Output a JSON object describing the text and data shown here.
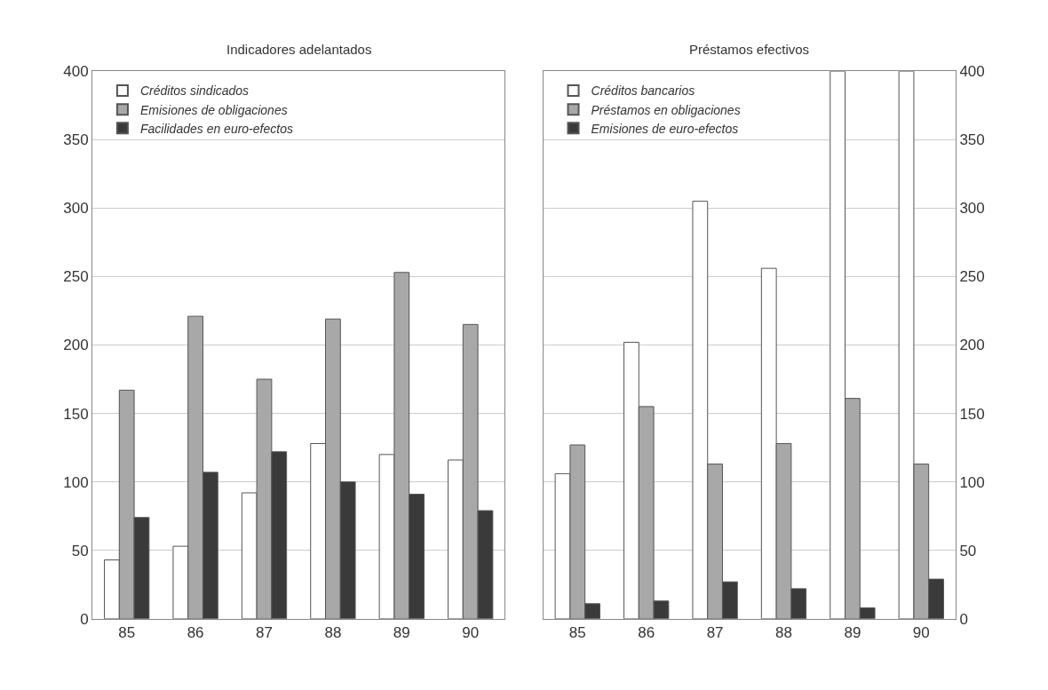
{
  "chart_data": [
    {
      "type": "bar",
      "title": "Indicadores adelantados",
      "categories": [
        "85",
        "86",
        "87",
        "88",
        "89",
        "90"
      ],
      "series": [
        {
          "name": "Créditos sindicados",
          "color": "#ffffff",
          "values": [
            43,
            53,
            92,
            128,
            120,
            116
          ]
        },
        {
          "name": "Emisiones de obligaciones",
          "color": "#a8a8a8",
          "values": [
            167,
            221,
            175,
            219,
            253,
            215
          ]
        },
        {
          "name": "Facilidades en euro-efectos",
          "color": "#3a3a3a",
          "values": [
            74,
            107,
            122,
            100,
            91,
            79
          ]
        }
      ],
      "ylim": [
        0,
        400
      ],
      "yticks": [
        0,
        50,
        100,
        150,
        200,
        250,
        300,
        350,
        400
      ],
      "grid": "y",
      "legend": "top left"
    },
    {
      "type": "bar",
      "title": "Préstamos efectivos",
      "categories": [
        "85",
        "86",
        "87",
        "88",
        "89",
        "90"
      ],
      "series": [
        {
          "name": "Créditos bancarios",
          "color": "#ffffff",
          "values": [
            106,
            202,
            305,
            256,
            400,
            400
          ]
        },
        {
          "name": "Préstamos en obligaciones",
          "color": "#a8a8a8",
          "values": [
            127,
            155,
            113,
            128,
            161,
            113
          ]
        },
        {
          "name": "Emisiones de euro-efectos",
          "color": "#3a3a3a",
          "values": [
            11,
            13,
            27,
            22,
            8,
            29
          ]
        }
      ],
      "ylim": [
        0,
        400
      ],
      "yticks": [
        0,
        50,
        100,
        150,
        200,
        250,
        300,
        350,
        400
      ],
      "grid": "y",
      "legend": "top left"
    }
  ]
}
